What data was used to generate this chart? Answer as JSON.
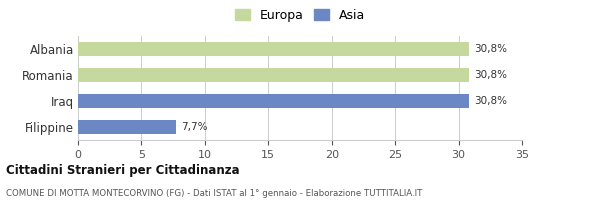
{
  "categories": [
    "Albania",
    "Romania",
    "Iraq",
    "Filippine"
  ],
  "values": [
    30.8,
    30.8,
    30.8,
    7.7
  ],
  "colors": [
    "#c5d89d",
    "#c5d89d",
    "#6b88c4",
    "#6b88c4"
  ],
  "labels": [
    "30,8%",
    "30,8%",
    "30,8%",
    "7,7%"
  ],
  "legend": [
    {
      "label": "Europa",
      "color": "#c5d89d"
    },
    {
      "label": "Asia",
      "color": "#6b88c4"
    }
  ],
  "xlim": [
    0,
    35
  ],
  "xticks": [
    0,
    5,
    10,
    15,
    20,
    25,
    30,
    35
  ],
  "title_bold": "Cittadini Stranieri per Cittadinanza",
  "subtitle": "COMUNE DI MOTTA MONTECORVINO (FG) - Dati ISTAT al 1° gennaio - Elaborazione TUTTITALIA.IT",
  "bar_height": 0.55,
  "background_color": "#ffffff",
  "grid_color": "#cccccc"
}
